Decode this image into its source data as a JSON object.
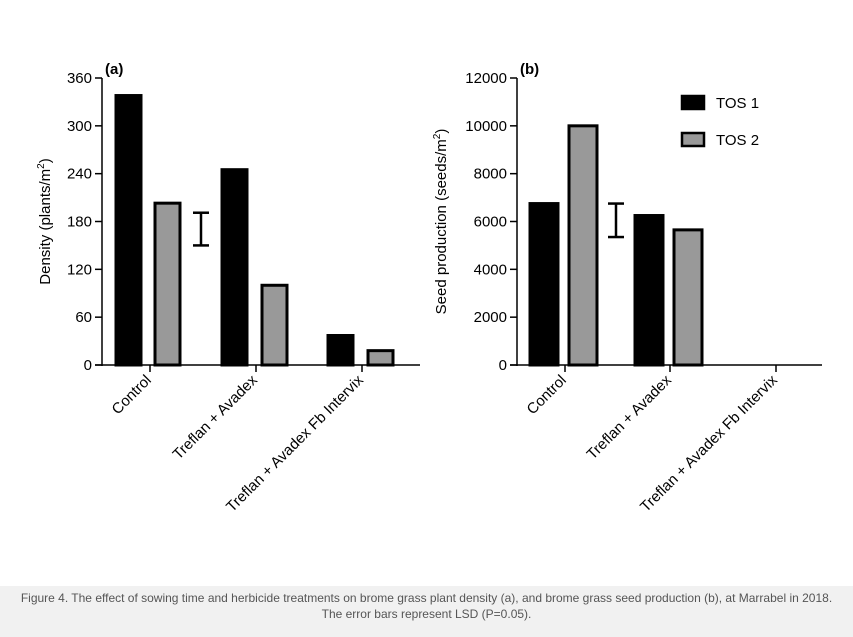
{
  "chart_data": [
    {
      "type": "bar",
      "panel_label": "(a)",
      "ylabel": "Density (plants/m2)",
      "ylabel_main": "Density (plants/m",
      "ylabel_sup": "2",
      "ylabel_end": ")",
      "ylim": [
        0,
        360
      ],
      "yticks": [
        "0",
        "60",
        "120",
        "180",
        "240",
        "300",
        "360"
      ],
      "categories": [
        "Control",
        "Treflan + Avadex",
        "Treflan + Avadex Fb Intervix"
      ],
      "series": [
        {
          "name": "TOS 1",
          "values": [
            338,
            245,
            37
          ]
        },
        {
          "name": "TOS 2",
          "values": [
            203,
            100,
            18
          ]
        }
      ],
      "lsd_error_bar": {
        "low": 150,
        "high": 191
      }
    },
    {
      "type": "bar",
      "panel_label": "(b)",
      "ylabel": "Seed production (seeds/m2)",
      "ylabel_main": "Seed production (seeds/m",
      "ylabel_sup": "2",
      "ylabel_end": ")",
      "ylim": [
        0,
        12000
      ],
      "yticks": [
        "0",
        "2000",
        "4000",
        "6000",
        "8000",
        "10000",
        "12000"
      ],
      "categories": [
        "Control",
        "Treflan + Avadex",
        "Treflan + Avadex Fb Intervix"
      ],
      "series": [
        {
          "name": "TOS 1",
          "values": [
            6750,
            6250,
            0
          ]
        },
        {
          "name": "TOS 2",
          "values": [
            10000,
            5650,
            0
          ]
        }
      ],
      "lsd_error_bar": {
        "low": 5350,
        "high": 6750
      },
      "legend": {
        "position": "top-right",
        "entries": [
          "TOS 1",
          "TOS 2"
        ]
      }
    }
  ],
  "colors": {
    "tos1": "#000000",
    "tos2": "#999999",
    "caption_bg": "#f1f1f1",
    "caption_text": "#555555"
  },
  "caption": "Figure 4. The effect of sowing time and herbicide treatments on brome grass plant density (a), and brome grass seed production (b), at Marrabel in 2018. The error bars represent LSD (P=0.05)."
}
